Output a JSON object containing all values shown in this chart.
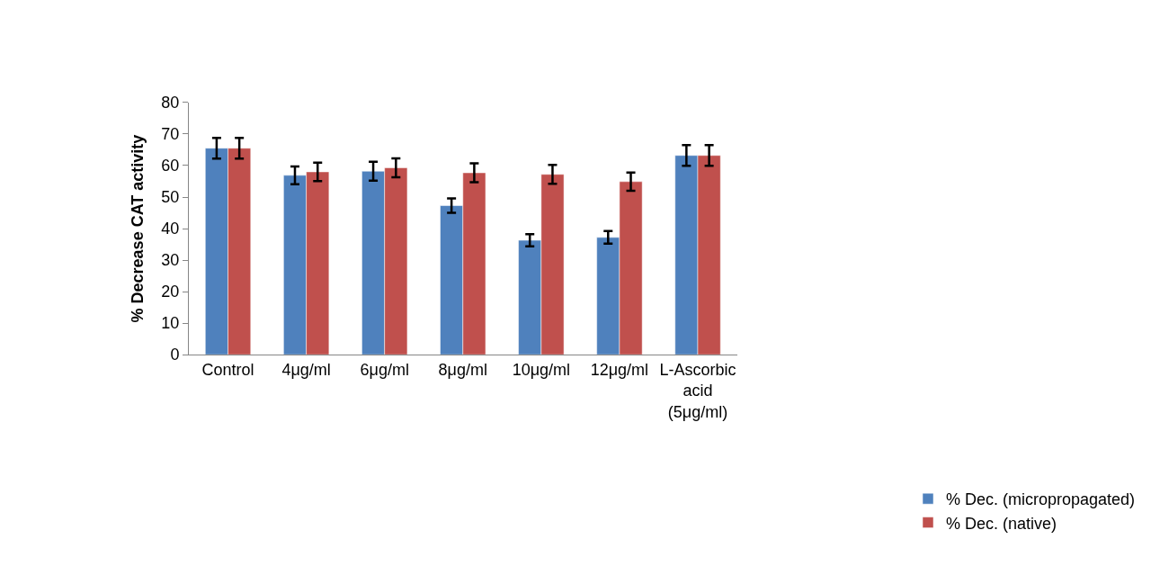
{
  "chart_data": {
    "type": "bar",
    "ylabel": "% Decrease CAT activity",
    "categories": [
      "Control",
      "4μg/ml",
      "6μg/ml",
      "8μg/ml",
      "10μg/ml",
      "12μg/ml",
      "L-Ascorbic acid (5μg/ml)"
    ],
    "series": [
      {
        "name": "% Dec. (micropropagated)",
        "color": "#4f81bd",
        "values": [
          65.5,
          56.9,
          58.2,
          47.3,
          36.3,
          37.2,
          63.2
        ],
        "errors": [
          3.3,
          2.8,
          3.0,
          2.3,
          1.9,
          2.0,
          3.3
        ]
      },
      {
        "name": "% Dec. (native)",
        "color": "#c0504d",
        "values": [
          65.5,
          58.0,
          59.3,
          57.7,
          57.2,
          54.9,
          63.2
        ],
        "errors": [
          3.3,
          2.9,
          3.0,
          3.0,
          3.0,
          2.9,
          3.3
        ]
      }
    ],
    "ylim": [
      0,
      80
    ],
    "yticks": [
      0,
      10,
      20,
      30,
      40,
      50,
      60,
      70,
      80
    ],
    "grid": false,
    "legend": "bottom right"
  }
}
